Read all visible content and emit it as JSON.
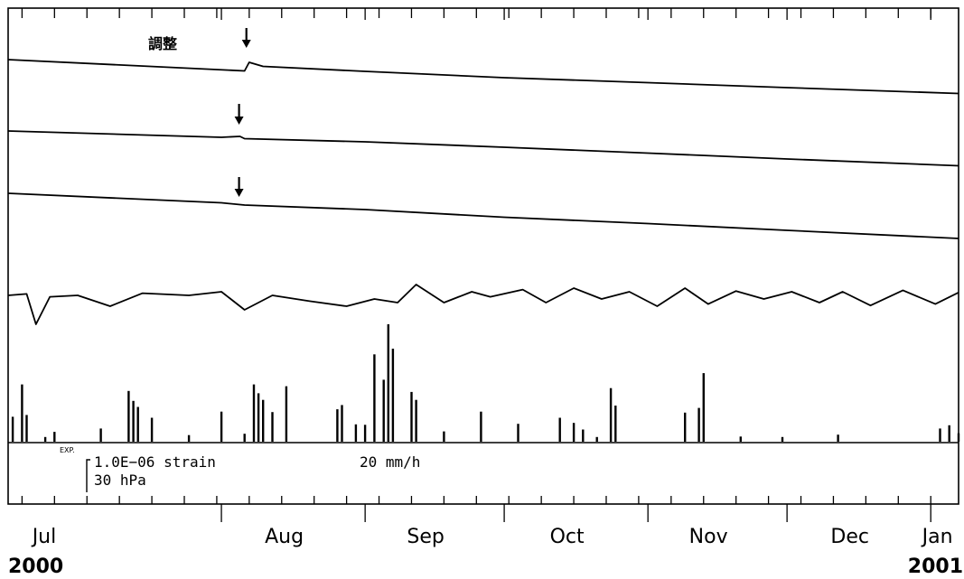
{
  "chart_data": {
    "type": "line",
    "title": "",
    "x_unit": "date",
    "x_range": [
      "2000-06-16",
      "2001-01-07"
    ],
    "months": [
      {
        "label": "Jul",
        "start": "2000-07-01"
      },
      {
        "label": "Aug",
        "start": "2000-08-01"
      },
      {
        "label": "Sep",
        "start": "2000-09-01"
      },
      {
        "label": "Oct",
        "start": "2000-10-01"
      },
      {
        "label": "Nov",
        "start": "2000-11-01"
      },
      {
        "label": "Dec",
        "start": "2000-12-01"
      },
      {
        "label": "Jan",
        "start": "2001-01-01"
      }
    ],
    "years": [
      {
        "label": "2000",
        "align": "start"
      },
      {
        "label": "2001",
        "align": "end"
      }
    ],
    "adjustment_label": "調整",
    "adjustment_date": "2000-08-06",
    "scale_legend": {
      "exp_label": "EXP.",
      "strain_label": "1.0E−06 strain",
      "pressure_label": "30 hPa",
      "rain_label": "20 mm/h"
    },
    "series": [
      {
        "unit": "strain",
        "points": [
          [
            "2000-06-16",
            0.0
          ],
          [
            "2000-08-06",
            -1.25
          ],
          [
            "2000-08-07",
            -0.3
          ],
          [
            "2000-08-10",
            -0.75
          ],
          [
            "2000-09-01",
            -1.3
          ],
          [
            "2000-10-01",
            -2.0
          ],
          [
            "2000-11-01",
            -2.55
          ],
          [
            "2000-12-01",
            -3.1
          ],
          [
            "2001-01-07",
            -3.75
          ]
        ],
        "offset_at": {
          "date": "2000-08-06",
          "label": "調整"
        }
      },
      {
        "unit": "strain",
        "points": [
          [
            "2000-06-16",
            0.0
          ],
          [
            "2000-08-01",
            -0.7
          ],
          [
            "2000-08-05",
            -0.6
          ],
          [
            "2000-08-06",
            -0.85
          ],
          [
            "2000-09-01",
            -1.2
          ],
          [
            "2000-10-01",
            -1.8
          ],
          [
            "2000-11-01",
            -2.45
          ],
          [
            "2000-12-01",
            -3.1
          ],
          [
            "2001-01-07",
            -3.85
          ]
        ],
        "offset_at": {
          "date": "2000-08-05"
        }
      },
      {
        "unit": "strain",
        "points": [
          [
            "2000-06-16",
            0.0
          ],
          [
            "2000-08-01",
            -1.05
          ],
          [
            "2000-08-06",
            -1.3
          ],
          [
            "2000-09-01",
            -1.8
          ],
          [
            "2000-10-01",
            -2.65
          ],
          [
            "2000-11-01",
            -3.35
          ],
          [
            "2000-12-01",
            -4.1
          ],
          [
            "2001-01-07",
            -5.0
          ]
        ],
        "offset_at": {
          "date": "2000-08-05"
        }
      },
      {
        "unit": "hPa",
        "points": [
          [
            "2000-06-16",
            0
          ],
          [
            "2000-06-20",
            2
          ],
          [
            "2000-06-22",
            -40
          ],
          [
            "2000-06-25",
            -2
          ],
          [
            "2000-07-01",
            0
          ],
          [
            "2000-07-08",
            -15
          ],
          [
            "2000-07-15",
            3
          ],
          [
            "2000-07-25",
            0
          ],
          [
            "2000-08-01",
            5
          ],
          [
            "2000-08-06",
            -20
          ],
          [
            "2000-08-12",
            0
          ],
          [
            "2000-08-20",
            -8
          ],
          [
            "2000-08-28",
            -15
          ],
          [
            "2000-09-03",
            -5
          ],
          [
            "2000-09-08",
            -10
          ],
          [
            "2000-09-12",
            15
          ],
          [
            "2000-09-18",
            -10
          ],
          [
            "2000-09-24",
            5
          ],
          [
            "2000-09-28",
            -2
          ],
          [
            "2000-10-05",
            8
          ],
          [
            "2000-10-10",
            -10
          ],
          [
            "2000-10-16",
            10
          ],
          [
            "2000-10-22",
            -5
          ],
          [
            "2000-10-28",
            5
          ],
          [
            "2000-11-03",
            -15
          ],
          [
            "2000-11-09",
            10
          ],
          [
            "2000-11-14",
            -12
          ],
          [
            "2000-11-20",
            6
          ],
          [
            "2000-11-26",
            -5
          ],
          [
            "2000-12-02",
            5
          ],
          [
            "2000-12-08",
            -10
          ],
          [
            "2000-12-13",
            5
          ],
          [
            "2000-12-19",
            -14
          ],
          [
            "2000-12-26",
            7
          ],
          [
            "2001-01-02",
            -12
          ],
          [
            "2001-01-07",
            4
          ]
        ]
      },
      {
        "type": "bar",
        "unit": "mm/h",
        "values": [
          [
            "2000-06-17",
            5.3
          ],
          [
            "2000-06-19",
            12.2
          ],
          [
            "2000-06-20",
            5.7
          ],
          [
            "2000-06-24",
            1.0
          ],
          [
            "2000-06-26",
            2.1
          ],
          [
            "2000-07-06",
            2.8
          ],
          [
            "2000-07-12",
            10.8
          ],
          [
            "2000-07-13",
            8.7
          ],
          [
            "2000-07-14",
            7.4
          ],
          [
            "2000-07-17",
            5.1
          ],
          [
            "2000-07-25",
            1.4
          ],
          [
            "2000-08-01",
            6.4
          ],
          [
            "2000-08-06",
            1.7
          ],
          [
            "2000-08-08",
            12.2
          ],
          [
            "2000-08-09",
            10.3
          ],
          [
            "2000-08-10",
            8.9
          ],
          [
            "2000-08-12",
            6.3
          ],
          [
            "2000-08-15",
            11.8
          ],
          [
            "2000-08-26",
            6.9
          ],
          [
            "2000-08-27",
            7.8
          ],
          [
            "2000-08-30",
            3.7
          ],
          [
            "2000-09-01",
            3.6
          ],
          [
            "2000-09-03",
            18.6
          ],
          [
            "2000-09-05",
            13.2
          ],
          [
            "2000-09-06",
            25.0
          ],
          [
            "2000-09-07",
            19.8
          ],
          [
            "2000-09-11",
            10.6
          ],
          [
            "2000-09-12",
            8.9
          ],
          [
            "2000-09-18",
            2.2
          ],
          [
            "2000-09-26",
            6.4
          ],
          [
            "2000-10-04",
            3.8
          ],
          [
            "2000-10-13",
            5.1
          ],
          [
            "2000-10-16",
            4.0
          ],
          [
            "2000-10-18",
            2.6
          ],
          [
            "2000-10-21",
            1.0
          ],
          [
            "2000-10-24",
            11.4
          ],
          [
            "2000-10-25",
            7.7
          ],
          [
            "2000-11-09",
            6.2
          ],
          [
            "2000-11-12",
            7.2
          ],
          [
            "2000-11-13",
            14.6
          ],
          [
            "2000-11-21",
            1.1
          ],
          [
            "2000-11-30",
            1.0
          ],
          [
            "2000-12-12",
            1.5
          ],
          [
            "2001-01-03",
            2.8
          ],
          [
            "2001-01-05",
            3.5
          ],
          [
            "2001-01-07",
            1.8
          ]
        ]
      }
    ]
  }
}
